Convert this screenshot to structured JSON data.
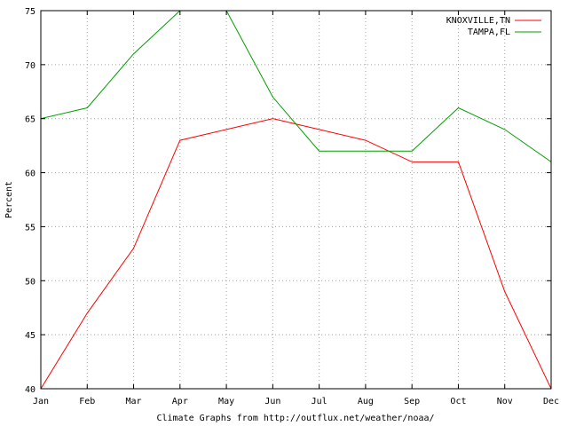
{
  "chart_data": {
    "type": "line",
    "categories": [
      "Jan",
      "Feb",
      "Mar",
      "Apr",
      "May",
      "Jun",
      "Jul",
      "Aug",
      "Sep",
      "Oct",
      "Nov",
      "Dec"
    ],
    "ylabel": "Percent",
    "xlabel": "Climate Graphs from http://outflux.net/weather/noaa/",
    "ylim": [
      40,
      75
    ],
    "yticks": [
      40,
      45,
      50,
      55,
      60,
      65,
      70,
      75
    ],
    "grid": true,
    "legend_position": "top-right",
    "series": [
      {
        "name": "KNOXVILLE,TN",
        "color": "#ff0000",
        "values": [
          40,
          47,
          53,
          63,
          64,
          65,
          64,
          63,
          61,
          61,
          49,
          40
        ]
      },
      {
        "name": "TAMPA,FL",
        "color": "#00a000",
        "values": [
          65,
          66,
          71,
          75,
          75,
          67,
          62,
          62,
          62,
          66,
          64,
          61
        ]
      }
    ]
  }
}
